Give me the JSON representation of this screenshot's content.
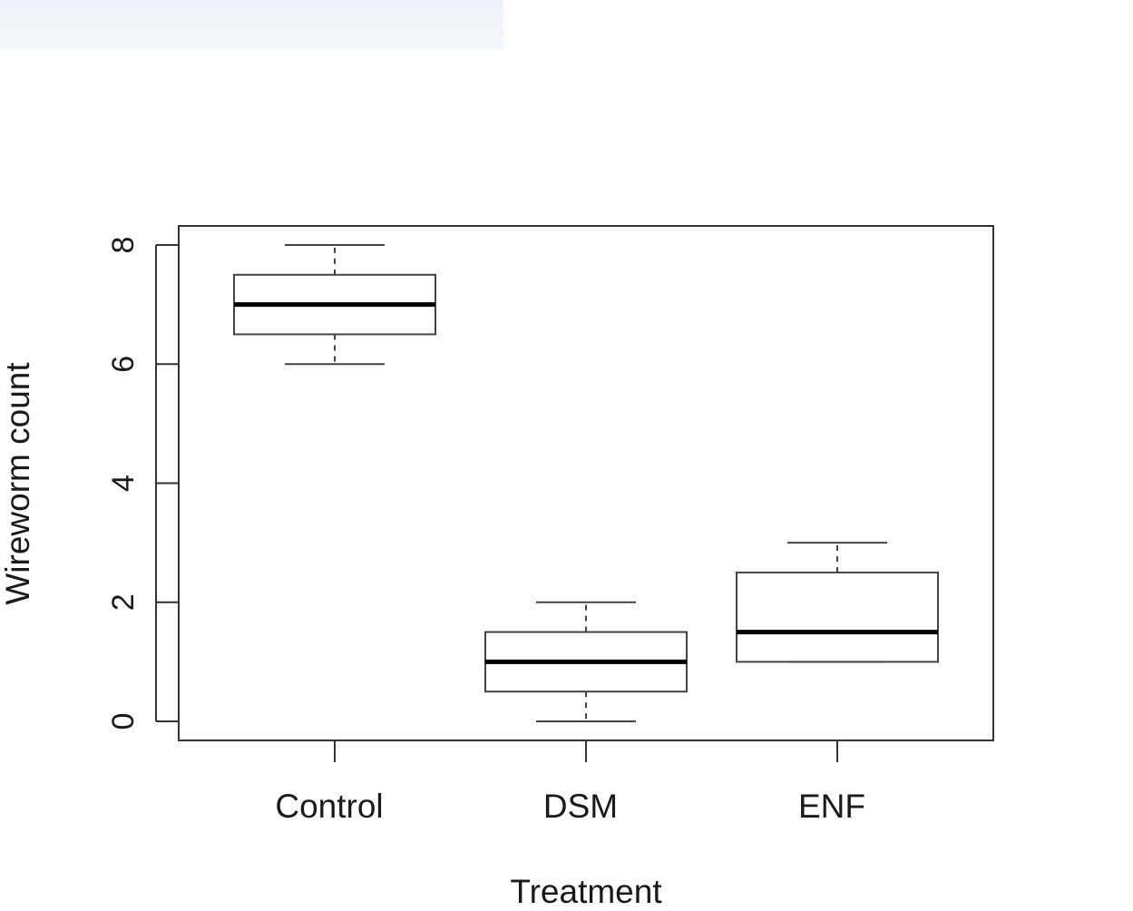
{
  "chart_data": {
    "type": "box",
    "xlabel": "Treatment",
    "ylabel": "Wireworm count",
    "ylim": [
      0,
      8
    ],
    "y_ticks": [
      "0",
      "2",
      "4",
      "6",
      "8"
    ],
    "categories": [
      "Control",
      "DSM",
      "ENF"
    ],
    "boxes": [
      {
        "label": "Control",
        "min": 6,
        "q1": 6.5,
        "median": 7,
        "q3": 7.5,
        "max": 8
      },
      {
        "label": "DSM",
        "min": 0,
        "q1": 0.5,
        "median": 1,
        "q3": 1.5,
        "max": 2
      },
      {
        "label": "ENF",
        "min": 1,
        "q1": 1,
        "median": 1.5,
        "q3": 2.5,
        "max": 3
      }
    ],
    "grid": false
  },
  "colors": {
    "axis": "#333333",
    "box": "#444444",
    "median": "#000000",
    "top_band": "#eef3f9"
  }
}
